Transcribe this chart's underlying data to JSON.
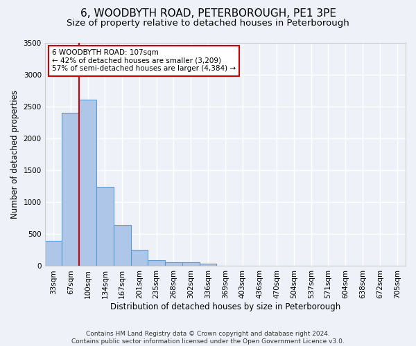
{
  "title": "6, WOODBYTH ROAD, PETERBOROUGH, PE1 3PE",
  "subtitle": "Size of property relative to detached houses in Peterborough",
  "xlabel": "Distribution of detached houses by size in Peterborough",
  "ylabel": "Number of detached properties",
  "footer_line1": "Contains HM Land Registry data © Crown copyright and database right 2024.",
  "footer_line2": "Contains public sector information licensed under the Open Government Licence v3.0.",
  "categories": [
    "33sqm",
    "67sqm",
    "100sqm",
    "134sqm",
    "167sqm",
    "201sqm",
    "235sqm",
    "268sqm",
    "302sqm",
    "336sqm",
    "369sqm",
    "403sqm",
    "436sqm",
    "470sqm",
    "504sqm",
    "537sqm",
    "571sqm",
    "604sqm",
    "638sqm",
    "672sqm",
    "705sqm"
  ],
  "values": [
    390,
    2400,
    2610,
    1240,
    640,
    255,
    95,
    60,
    55,
    40,
    0,
    0,
    0,
    0,
    0,
    0,
    0,
    0,
    0,
    0,
    0
  ],
  "bar_color": "#aec6e8",
  "bar_edge_color": "#5b9bd5",
  "background_color": "#eef2f8",
  "grid_color": "#ffffff",
  "vline_x_index": 2,
  "vline_color": "#cc0000",
  "annotation_line1": "6 WOODBYTH ROAD: 107sqm",
  "annotation_line2": "← 42% of detached houses are smaller (3,209)",
  "annotation_line3": "57% of semi-detached houses are larger (4,384) →",
  "annotation_box_color": "#ffffff",
  "annotation_box_edge": "#cc0000",
  "ylim": [
    0,
    3500
  ],
  "yticks": [
    0,
    500,
    1000,
    1500,
    2000,
    2500,
    3000,
    3500
  ],
  "title_fontsize": 11,
  "subtitle_fontsize": 9.5,
  "tick_fontsize": 7.5,
  "ylabel_fontsize": 8.5,
  "xlabel_fontsize": 8.5,
  "annotation_fontsize": 7.5,
  "footer_fontsize": 6.5
}
